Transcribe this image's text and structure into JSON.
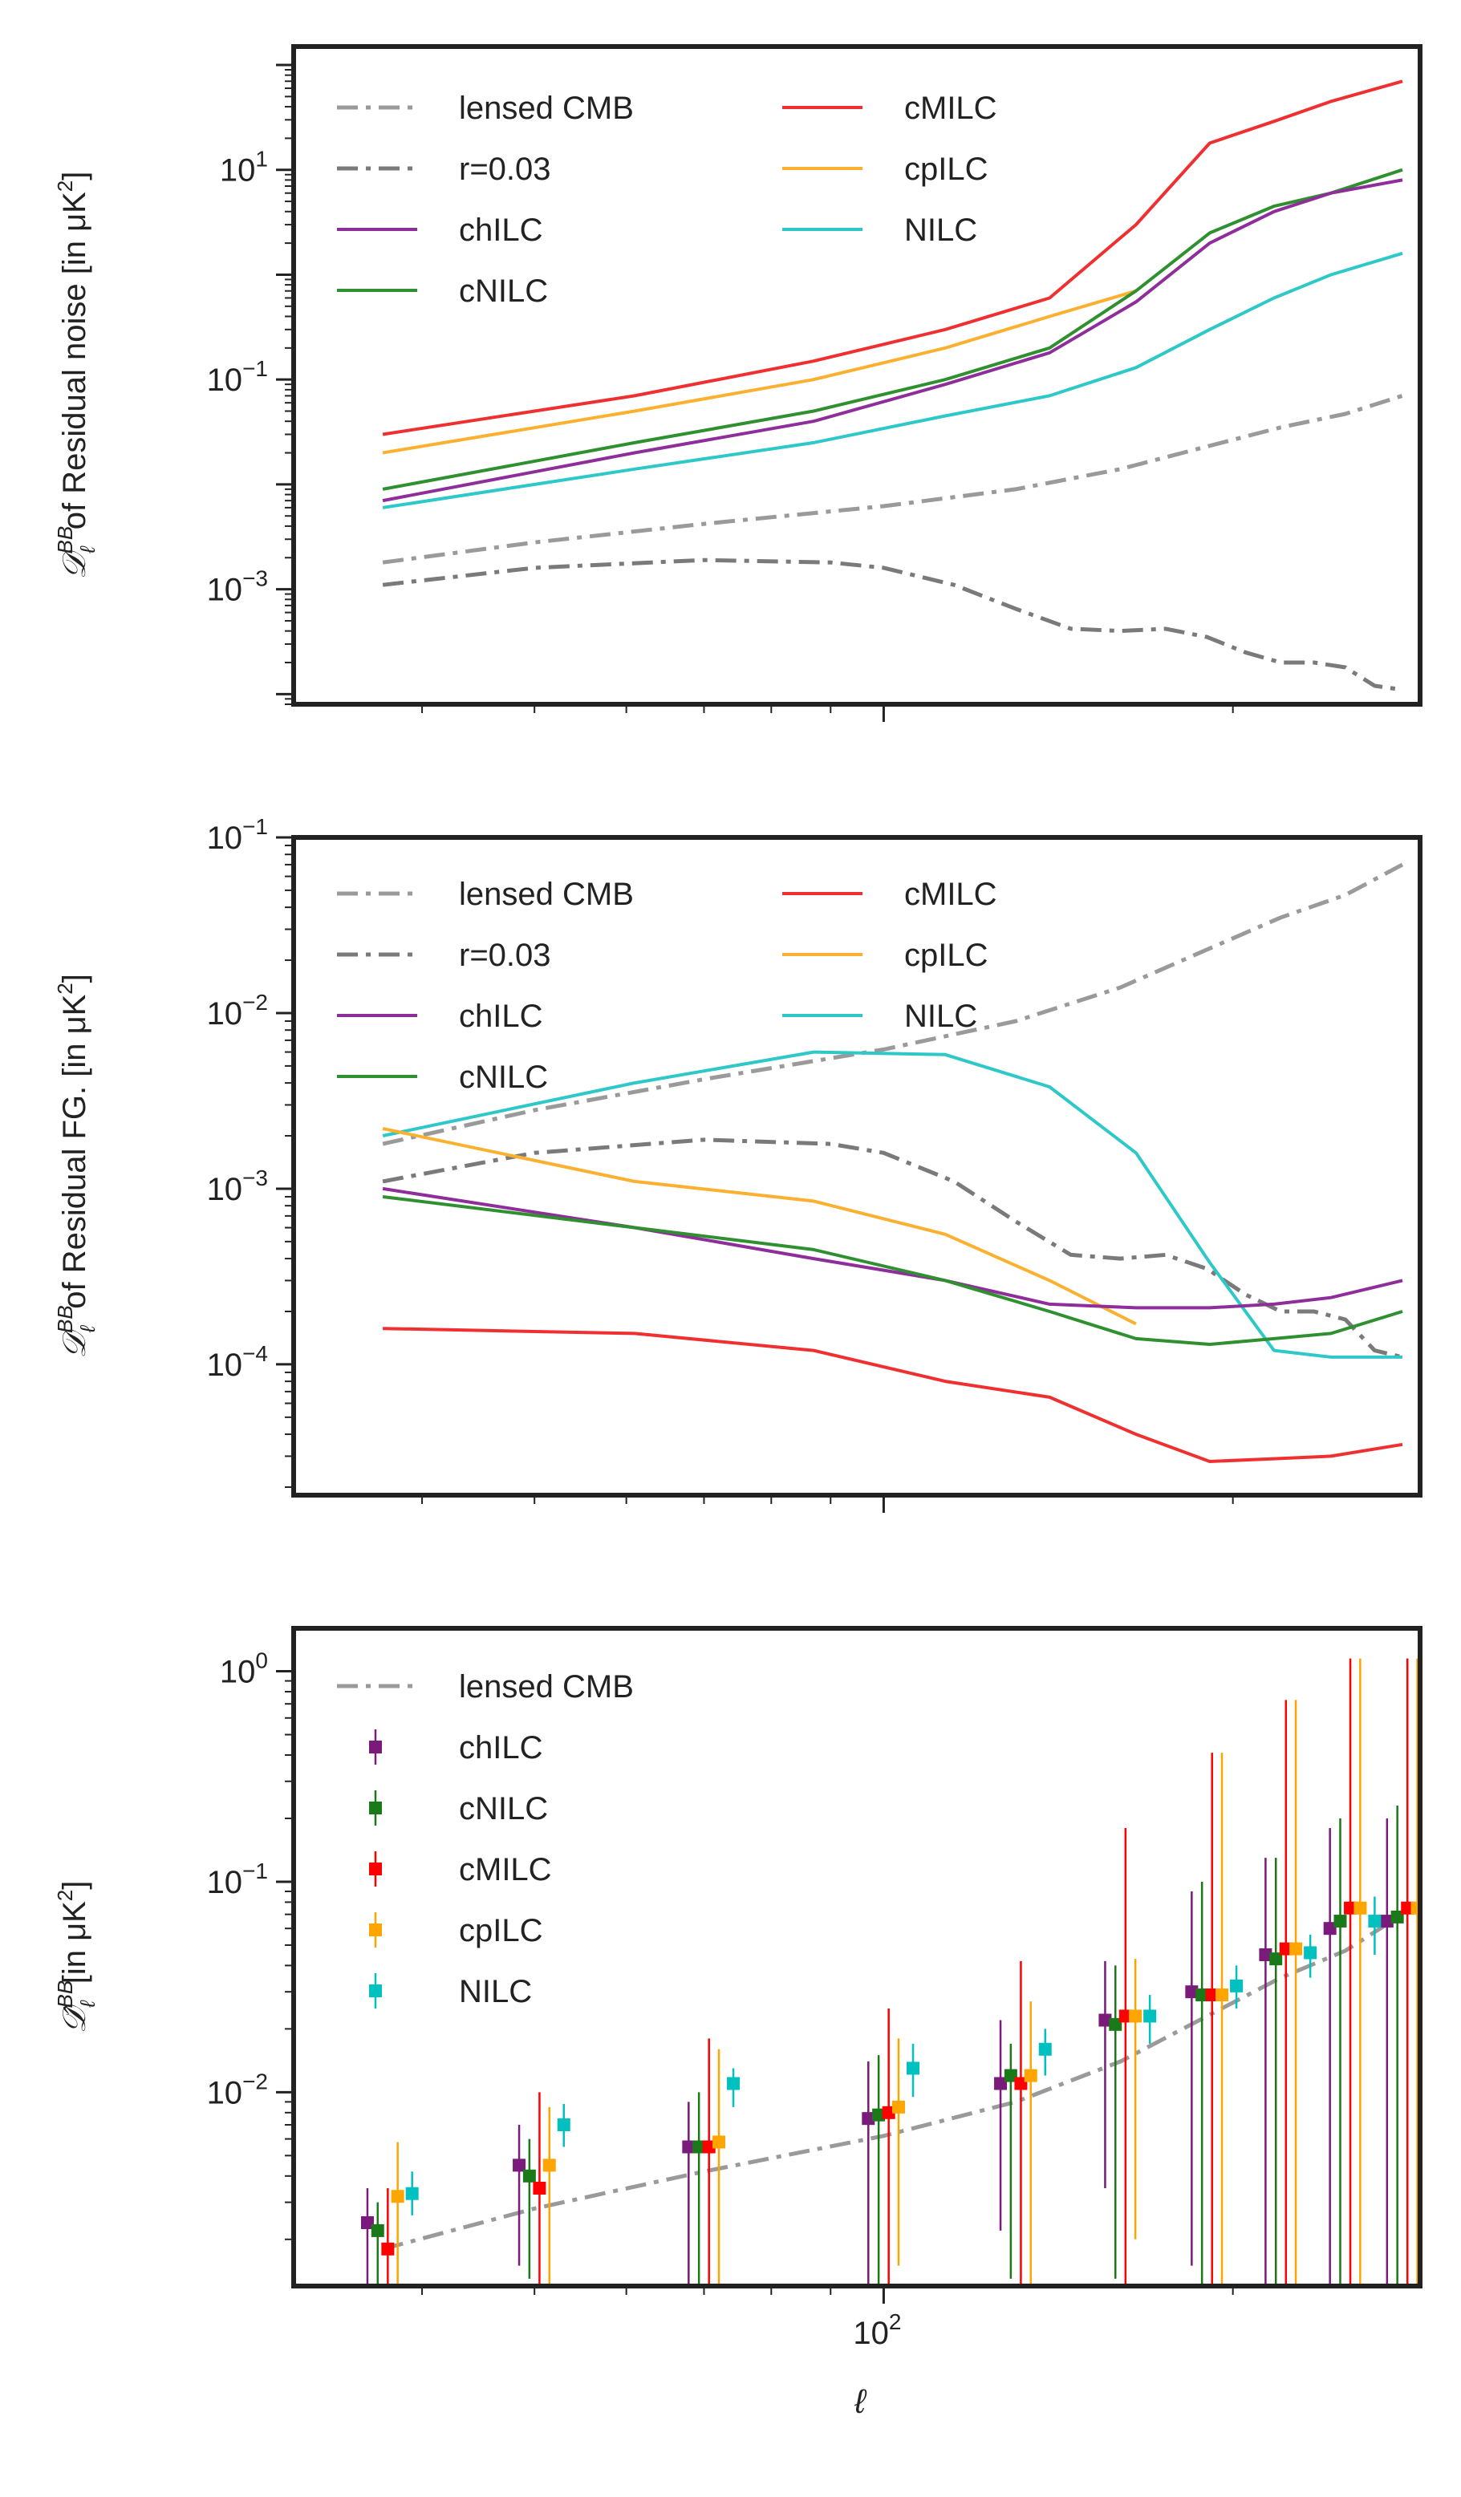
{
  "colors": {
    "lensed": "#9a9a9a",
    "r003": "#7a7a7a",
    "chILC": "#8e2e9a",
    "cNILC": "#2f902f",
    "cMILC": "#f03030",
    "cpILC": "#fbb030",
    "NILC": "#2ec8c8",
    "chILC_pt": "#7a1a7a",
    "cNILC_pt": "#1a7a1a",
    "cMILC_pt": "#ff0000",
    "cpILC_pt": "#ffa500",
    "NILC_pt": "#00c0c0"
  },
  "chart_data": [
    {
      "type": "line",
      "title": "",
      "ylabel_prefix": "𝒟",
      "ylabel_sup": "BB",
      "ylabel_sub": "ℓ",
      "ylabel_text": " of Residual noise [in μK",
      "ylabel_end": "]",
      "xlabel": "",
      "xscale": "log",
      "yscale": "log",
      "xlim": [
        31,
        290
      ],
      "ylim": [
        8e-05,
        150
      ],
      "yticks": [
        {
          "value": 0.001,
          "base": "10",
          "exp": "−3"
        },
        {
          "value": 0.1,
          "base": "10",
          "exp": "−1"
        },
        {
          "value": 10,
          "base": "10",
          "exp": "1"
        }
      ],
      "legend": [
        {
          "label": "lensed CMB",
          "key": "lensed",
          "style": "dashdot"
        },
        {
          "label": "r=0.03",
          "key": "r003",
          "style": "dashdot"
        },
        {
          "label": "chILC",
          "key": "chILC",
          "style": "solid"
        },
        {
          "label": "cNILC",
          "key": "cNILC",
          "style": "solid"
        },
        {
          "label": "cMILC",
          "key": "cMILC",
          "style": "solid"
        },
        {
          "label": "cpILC",
          "key": "cpILC",
          "style": "solid"
        },
        {
          "label": "NILC",
          "key": "NILC",
          "style": "solid"
        }
      ],
      "series": [
        {
          "name": "lensed CMB",
          "key": "lensed",
          "style": "dashdot",
          "x": [
            37,
            50,
            70,
            100,
            130,
            160,
            190,
            220,
            250,
            280
          ],
          "y": [
            0.0018,
            0.0028,
            0.0042,
            0.0062,
            0.009,
            0.014,
            0.023,
            0.035,
            0.047,
            0.07
          ]
        },
        {
          "name": "r=0.03",
          "key": "r003",
          "style": "dashdot",
          "x": [
            37,
            50,
            70,
            90,
            100,
            115,
            130,
            145,
            160,
            175,
            190,
            205,
            220,
            235,
            250,
            265,
            280
          ],
          "y": [
            0.0011,
            0.0016,
            0.0019,
            0.0018,
            0.0016,
            0.0011,
            0.00065,
            0.00042,
            0.0004,
            0.00042,
            0.00035,
            0.00025,
            0.0002,
            0.0002,
            0.00018,
            0.00012,
            0.00011
          ]
        },
        {
          "name": "cMILC",
          "key": "cMILC",
          "style": "solid",
          "x": [
            37,
            61,
            87,
            113,
            139,
            165,
            191,
            217,
            243,
            280
          ],
          "y": [
            0.03,
            0.07,
            0.15,
            0.3,
            0.6,
            3,
            18,
            29,
            45,
            70
          ]
        },
        {
          "name": "cpILC",
          "key": "cpILC",
          "style": "solid",
          "x": [
            37,
            61,
            87,
            113,
            139,
            165
          ],
          "y": [
            0.02,
            0.05,
            0.1,
            0.2,
            0.4,
            0.7
          ]
        },
        {
          "name": "cNILC",
          "key": "cNILC",
          "style": "solid",
          "x": [
            37,
            61,
            87,
            113,
            139,
            165,
            191,
            217,
            243,
            280
          ],
          "y": [
            0.009,
            0.025,
            0.05,
            0.1,
            0.2,
            0.7,
            2.5,
            4.5,
            6,
            10
          ]
        },
        {
          "name": "chILC",
          "key": "chILC",
          "style": "solid",
          "x": [
            37,
            61,
            87,
            113,
            139,
            165,
            191,
            217,
            243,
            280
          ],
          "y": [
            0.007,
            0.02,
            0.04,
            0.09,
            0.18,
            0.55,
            2,
            4,
            6,
            8
          ]
        },
        {
          "name": "NILC",
          "key": "NILC",
          "style": "solid",
          "x": [
            37,
            61,
            87,
            113,
            139,
            165,
            191,
            217,
            243,
            280
          ],
          "y": [
            0.006,
            0.014,
            0.025,
            0.045,
            0.07,
            0.13,
            0.3,
            0.6,
            1,
            1.6
          ]
        }
      ]
    },
    {
      "type": "line",
      "title": "",
      "ylabel_prefix": "𝒟",
      "ylabel_sup": "BB",
      "ylabel_sub": "ℓ",
      "ylabel_text": " of Residual FG. [in μK",
      "ylabel_end": "]",
      "xlabel": "",
      "xscale": "log",
      "yscale": "log",
      "xlim": [
        31,
        290
      ],
      "ylim": [
        1.8e-05,
        0.1
      ],
      "yticks": [
        {
          "value": 0.0001,
          "base": "10",
          "exp": "−4"
        },
        {
          "value": 0.001,
          "base": "10",
          "exp": "−3"
        },
        {
          "value": 0.01,
          "base": "10",
          "exp": "−2"
        },
        {
          "value": 0.1,
          "base": "10",
          "exp": "−1"
        }
      ],
      "legend": [
        {
          "label": "lensed CMB",
          "key": "lensed",
          "style": "dashdot"
        },
        {
          "label": "r=0.03",
          "key": "r003",
          "style": "dashdot"
        },
        {
          "label": "chILC",
          "key": "chILC",
          "style": "solid"
        },
        {
          "label": "cNILC",
          "key": "cNILC",
          "style": "solid"
        },
        {
          "label": "cMILC",
          "key": "cMILC",
          "style": "solid"
        },
        {
          "label": "cpILC",
          "key": "cpILC",
          "style": "solid"
        },
        {
          "label": "NILC",
          "key": "NILC",
          "style": "solid"
        }
      ],
      "series": [
        {
          "name": "lensed CMB",
          "key": "lensed",
          "style": "dashdot",
          "x": [
            37,
            50,
            70,
            100,
            130,
            160,
            190,
            220,
            250,
            280
          ],
          "y": [
            0.0018,
            0.0028,
            0.0042,
            0.0062,
            0.009,
            0.014,
            0.023,
            0.035,
            0.047,
            0.07
          ]
        },
        {
          "name": "r=0.03",
          "key": "r003",
          "style": "dashdot",
          "x": [
            37,
            50,
            70,
            90,
            100,
            115,
            130,
            145,
            160,
            175,
            190,
            205,
            220,
            235,
            250,
            265,
            280
          ],
          "y": [
            0.0011,
            0.0016,
            0.0019,
            0.0018,
            0.0016,
            0.0011,
            0.00065,
            0.00042,
            0.0004,
            0.00042,
            0.00035,
            0.00025,
            0.0002,
            0.0002,
            0.00018,
            0.00012,
            0.00011
          ]
        },
        {
          "name": "NILC",
          "key": "NILC",
          "style": "solid",
          "x": [
            37,
            61,
            87,
            113,
            139,
            165,
            191,
            217,
            243,
            280
          ],
          "y": [
            0.002,
            0.004,
            0.006,
            0.0058,
            0.0038,
            0.0016,
            0.00038,
            0.00012,
            0.00011,
            0.00011
          ]
        },
        {
          "name": "cpILC",
          "key": "cpILC",
          "style": "solid",
          "x": [
            37,
            61,
            87,
            113,
            139,
            165
          ],
          "y": [
            0.0022,
            0.0011,
            0.00085,
            0.00055,
            0.0003,
            0.00017
          ]
        },
        {
          "name": "chILC",
          "key": "chILC",
          "style": "solid",
          "x": [
            37,
            61,
            87,
            113,
            139,
            165,
            191,
            217,
            243,
            280
          ],
          "y": [
            0.001,
            0.0006,
            0.0004,
            0.0003,
            0.00022,
            0.00021,
            0.00021,
            0.00022,
            0.00024,
            0.0003
          ]
        },
        {
          "name": "cNILC",
          "key": "cNILC",
          "style": "solid",
          "x": [
            37,
            61,
            87,
            113,
            139,
            165,
            191,
            217,
            243,
            280
          ],
          "y": [
            0.0009,
            0.0006,
            0.00045,
            0.0003,
            0.0002,
            0.00014,
            0.00013,
            0.00014,
            0.00015,
            0.0002
          ]
        },
        {
          "name": "cMILC",
          "key": "cMILC",
          "style": "solid",
          "x": [
            37,
            61,
            87,
            113,
            139,
            165,
            191,
            217,
            243,
            280
          ],
          "y": [
            0.00016,
            0.00015,
            0.00012,
            8e-05,
            6.5e-05,
            4e-05,
            2.8e-05,
            2.9e-05,
            3e-05,
            3.5e-05
          ]
        }
      ]
    },
    {
      "type": "scatter",
      "title": "",
      "ylabel_prefix": "𝒟̂",
      "ylabel_sup": "BB",
      "ylabel_sub": "ℓ",
      "ylabel_text": " [in μK",
      "ylabel_end": "]",
      "xlabel": "ℓ",
      "xscale": "log",
      "yscale": "log",
      "xlim": [
        31,
        290
      ],
      "ylim": [
        0.0012,
        1.6
      ],
      "yticks": [
        {
          "value": 0.01,
          "base": "10",
          "exp": "−2"
        },
        {
          "value": 0.1,
          "base": "10",
          "exp": "−1"
        },
        {
          "value": 1,
          "base": "10",
          "exp": "0"
        }
      ],
      "xticks": [
        {
          "value": 100,
          "base": "10",
          "exp": "2"
        }
      ],
      "bin_centers": [
        37,
        61,
        87,
        113,
        139,
        165,
        191,
        217,
        243,
        280
      ],
      "legend": [
        {
          "label": "lensed CMB",
          "key": "lensed",
          "style": "dashdot"
        },
        {
          "label": "chILC",
          "key": "chILC_pt",
          "style": "errorbar"
        },
        {
          "label": "cNILC",
          "key": "cNILC_pt",
          "style": "errorbar"
        },
        {
          "label": "cMILC",
          "key": "cMILC_pt",
          "style": "errorbar"
        },
        {
          "label": "cpILC",
          "key": "cpILC_pt",
          "style": "errorbar"
        },
        {
          "label": "NILC",
          "key": "NILC_pt",
          "style": "errorbar"
        }
      ],
      "line_series": [
        {
          "name": "lensed CMB",
          "key": "lensed",
          "style": "dashdot",
          "x": [
            37,
            50,
            70,
            100,
            130,
            160,
            190,
            220,
            250,
            280
          ],
          "y": [
            0.0018,
            0.0028,
            0.0042,
            0.0062,
            0.009,
            0.014,
            0.023,
            0.035,
            0.047,
            0.07
          ]
        }
      ],
      "series": [
        {
          "name": "chILC",
          "key": "chILC_pt",
          "offset": 0.97,
          "x": [
            37,
            50,
            70,
            100,
            130,
            160,
            190,
            220,
            250,
            280
          ],
          "y": [
            0.0024,
            0.0045,
            0.0055,
            0.0075,
            0.011,
            0.022,
            0.03,
            0.045,
            0.06,
            0.065
          ],
          "yerr_lo": [
            0.0012,
            0.0015,
            0.0012,
            0.0012,
            0.0022,
            0.0035,
            0.0015,
            0.0012,
            0.0012,
            0.0012
          ],
          "yerr_hi": [
            0.0035,
            0.007,
            0.009,
            0.014,
            0.022,
            0.042,
            0.09,
            0.13,
            0.18,
            0.2
          ]
        },
        {
          "name": "cNILC",
          "key": "cNILC_pt",
          "offset": 0.99,
          "x": [
            37,
            50,
            70,
            100,
            130,
            160,
            190,
            220,
            250,
            280
          ],
          "y": [
            0.0022,
            0.004,
            0.0055,
            0.0078,
            0.012,
            0.021,
            0.029,
            0.043,
            0.065,
            0.068
          ],
          "yerr_lo": [
            0.0012,
            0.0013,
            0.0012,
            0.0012,
            0.0013,
            0.0013,
            0.0012,
            0.0012,
            0.0012,
            0.0012
          ],
          "yerr_hi": [
            0.003,
            0.006,
            0.01,
            0.015,
            0.017,
            0.04,
            0.1,
            0.13,
            0.2,
            0.23
          ]
        },
        {
          "name": "cMILC",
          "key": "cMILC_pt",
          "offset": 1.01,
          "x": [
            37,
            50,
            70,
            100,
            130,
            160,
            190,
            220,
            250,
            280
          ],
          "y": [
            0.0018,
            0.0035,
            0.0055,
            0.008,
            0.011,
            0.023,
            0.029,
            0.048,
            0.075,
            0.075
          ],
          "yerr_lo": [
            0.0012,
            0.0012,
            0.0012,
            0.0012,
            0.0012,
            0.0012,
            0.0012,
            0.0012,
            0.0012,
            0.0012
          ],
          "yerr_hi": [
            0.0035,
            0.01,
            0.018,
            0.025,
            0.042,
            0.18,
            0.41,
            0.73,
            1.15,
            1.15
          ]
        },
        {
          "name": "cpILC",
          "key": "cpILC_pt",
          "offset": 1.03,
          "x": [
            37,
            50,
            70,
            100,
            130,
            160,
            190,
            220,
            250,
            280
          ],
          "y": [
            0.0032,
            0.0045,
            0.0058,
            0.0085,
            0.012,
            0.023,
            0.029,
            0.048,
            0.075,
            0.075
          ],
          "yerr_lo": [
            0.0012,
            0.0012,
            0.0012,
            0.0015,
            0.0012,
            0.002,
            0.0012,
            0.0012,
            0.0012,
            0.0012
          ],
          "yerr_hi": [
            0.0058,
            0.0085,
            0.016,
            0.018,
            0.027,
            0.043,
            0.41,
            0.73,
            1.15,
            1.15
          ]
        },
        {
          "name": "NILC",
          "key": "NILC_pt",
          "offset": 1.06,
          "x": [
            37,
            50,
            70,
            100,
            130,
            160,
            190,
            220,
            250,
            280
          ],
          "y": [
            0.0033,
            0.007,
            0.011,
            0.013,
            0.016,
            0.023,
            0.032,
            0.046,
            0.065,
            0.068
          ],
          "yerr_lo": [
            0.0026,
            0.0055,
            0.0085,
            0.0095,
            0.012,
            0.017,
            0.025,
            0.035,
            0.045,
            0.048
          ],
          "yerr_hi": [
            0.0042,
            0.0088,
            0.013,
            0.017,
            0.02,
            0.029,
            0.04,
            0.056,
            0.085,
            0.09
          ]
        }
      ]
    }
  ]
}
